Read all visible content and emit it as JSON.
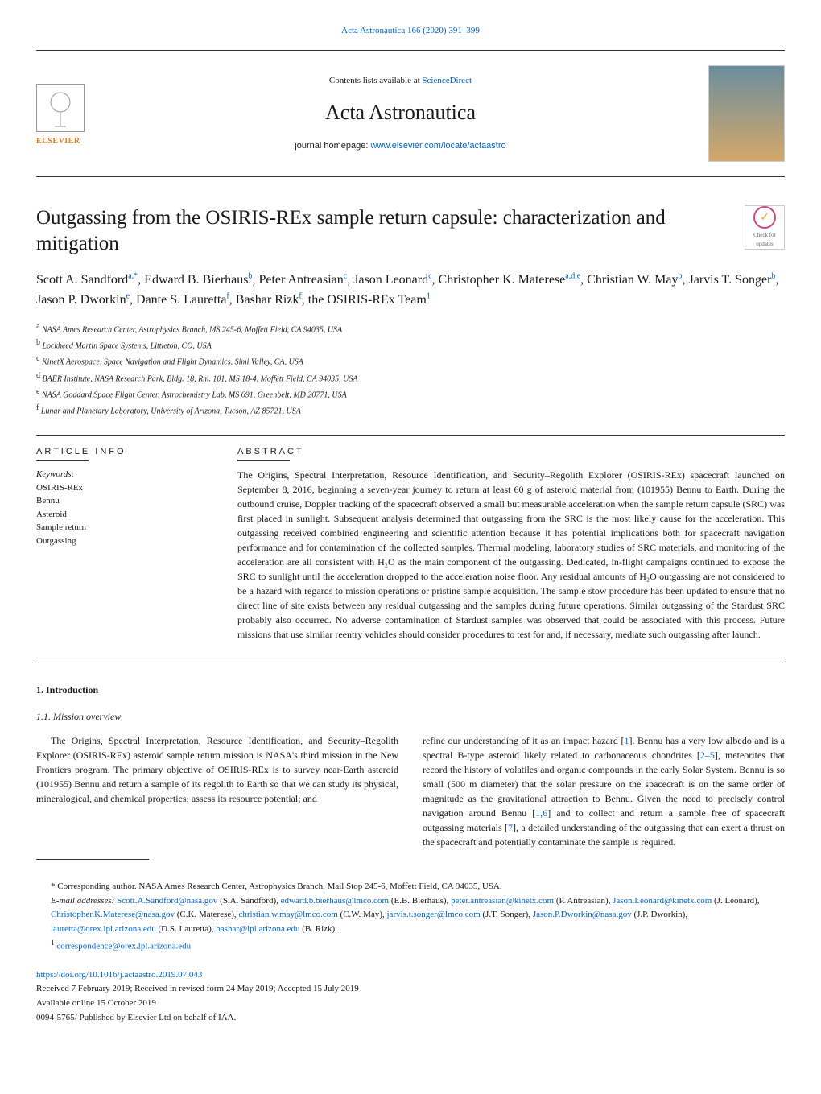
{
  "top": {
    "journal_ref": "Acta Astronautica 166 (2020) 391–399"
  },
  "header": {
    "contents_prefix": "Contents lists available at ",
    "contents_link": "ScienceDirect",
    "journal_name": "Acta Astronautica",
    "homepage_prefix": "journal homepage: ",
    "homepage_url": "www.elsevier.com/locate/actaastro",
    "publisher": "ELSEVIER"
  },
  "check": {
    "line1": "Check for",
    "line2": "updates"
  },
  "paper": {
    "title": "Outgassing from the OSIRIS-REx sample return capsule: characterization and mitigation",
    "authors_html": "Scott A. Sandford<sup class='sup'>a,*</sup>, Edward B. Bierhaus<sup class='sup'>b</sup>, Peter Antreasian<sup class='sup'>c</sup>, Jason Leonard<sup class='sup'>c</sup>, Christopher K. Materese<sup class='sup'>a,d,e</sup>, Christian W. May<sup class='sup'>b</sup>, Jarvis T. Songer<sup class='sup'>b</sup>, Jason P. Dworkin<sup class='sup'>e</sup>, Dante S. Lauretta<sup class='sup'>f</sup>, Bashar Rizk<sup class='sup'>f</sup>, the OSIRIS-REx Team<sup class='sup'>1</sup>"
  },
  "affiliations": [
    {
      "mark": "a",
      "text": "NASA Ames Research Center, Astrophysics Branch, MS 245-6, Moffett Field, CA 94035, USA"
    },
    {
      "mark": "b",
      "text": "Lockheed Martin Space Systems, Littleton, CO, USA"
    },
    {
      "mark": "c",
      "text": "KinetX Aerospace, Space Navigation and Flight Dynamics, Simi Valley, CA, USA"
    },
    {
      "mark": "d",
      "text": "BAER Institute, NASA Research Park, Bldg. 18, Rm. 101, MS 18-4, Moffett Field, CA 94035, USA"
    },
    {
      "mark": "e",
      "text": "NASA Goddard Space Flight Center, Astrochemistry Lab, MS 691, Greenbelt, MD 20771, USA"
    },
    {
      "mark": "f",
      "text": "Lunar and Planetary Laboratory, University of Arizona, Tucson, AZ 85721, USA"
    }
  ],
  "info": {
    "heading": "ARTICLE INFO",
    "keywords_label": "Keywords:",
    "keywords": [
      "OSIRIS-REx",
      "Bennu",
      "Asteroid",
      "Sample return",
      "Outgassing"
    ]
  },
  "abstract": {
    "heading": "ABSTRACT",
    "text": "The Origins, Spectral Interpretation, Resource Identification, and Security–Regolith Explorer (OSIRIS-REx) spacecraft launched on September 8, 2016, beginning a seven-year journey to return at least 60 g of asteroid material from (101955) Bennu to Earth. During the outbound cruise, Doppler tracking of the spacecraft observed a small but measurable acceleration when the sample return capsule (SRC) was first placed in sunlight. Subsequent analysis determined that outgassing from the SRC is the most likely cause for the acceleration. This outgassing received combined engineering and scientific attention because it has potential implications both for spacecraft navigation performance and for contamination of the collected samples. Thermal modeling, laboratory studies of SRC materials, and monitoring of the acceleration are all consistent with H₂O as the main component of the outgassing. Dedicated, in-flight campaigns continued to expose the SRC to sunlight until the acceleration dropped to the acceleration noise floor. Any residual amounts of H₂O outgassing are not considered to be a hazard with regards to mission operations or pristine sample acquisition. The sample stow procedure has been updated to ensure that no direct line of site exists between any residual outgassing and the samples during future operations. Similar outgassing of the Stardust SRC probably also occurred. No adverse contamination of Stardust samples was observed that could be associated with this process. Future missions that use similar reentry vehicles should consider procedures to test for and, if necessary, mediate such outgassing after launch."
  },
  "intro": {
    "section_number": "1. Introduction",
    "subsection": "1.1. Mission overview",
    "col1": "The Origins, Spectral Interpretation, Resource Identification, and Security–Regolith Explorer (OSIRIS-REx) asteroid sample return mission is NASA's third mission in the New Frontiers program. The primary objective of OSIRIS-REx is to survey near-Earth asteroid (101955) Bennu and return a sample of its regolith to Earth so that we can study its physical, mineralogical, and chemical properties; assess its resource potential; and",
    "col2": "refine our understanding of it as an impact hazard [1]. Bennu has a very low albedo and is a spectral B-type asteroid likely related to carbonaceous chondrites [2–5], meteorites that record the history of volatiles and organic compounds in the early Solar System. Bennu is so small (500 m diameter) that the solar pressure on the spacecraft is on the same order of magnitude as the gravitational attraction to Bennu. Given the need to precisely control navigation around Bennu [1,6] and to collect and return a sample free of spacecraft outgassing materials [7], a detailed understanding of the outgassing that can exert a thrust on the spacecraft and potentially contaminate the sample is required."
  },
  "footnotes": {
    "corresponding": "* Corresponding author. NASA Ames Research Center, Astrophysics Branch, Mail Stop 245-6, Moffett Field, CA 94035, USA.",
    "emails_label": "E-mail addresses: ",
    "emails": [
      {
        "addr": "Scott.A.Sandford@nasa.gov",
        "name": " (S.A. Sandford), "
      },
      {
        "addr": "edward.b.bierhaus@lmco.com",
        "name": " (E.B. Bierhaus), "
      },
      {
        "addr": "peter.antreasian@kinetx.com",
        "name": " (P. Antreasian), "
      },
      {
        "addr": "Jason.Leonard@kinetx.com",
        "name": " (J. Leonard), "
      },
      {
        "addr": "Christopher.K.Materese@nasa.gov",
        "name": " (C.K. Materese), "
      },
      {
        "addr": "christian.w.may@lmco.com",
        "name": " (C.W. May), "
      },
      {
        "addr": "jarvis.t.songer@lmco.com",
        "name": " (J.T. Songer), "
      },
      {
        "addr": "Jason.P.Dworkin@nasa.gov",
        "name": " (J.P. Dworkin), "
      },
      {
        "addr": "lauretta@orex.lpl.arizona.edu",
        "name": " (D.S. Lauretta), "
      },
      {
        "addr": "bashar@lpl.arizona.edu",
        "name": " (B. Rizk)."
      }
    ],
    "team_contact_mark": "1",
    "team_contact": "correspondence@orex.lpl.arizona.edu"
  },
  "doi": {
    "url": "https://doi.org/10.1016/j.actaastro.2019.07.043",
    "received": "Received 7 February 2019; Received in revised form 24 May 2019; Accepted 15 July 2019",
    "online": "Available online 15 October 2019",
    "issn": "0094-5765/ Published by Elsevier Ltd on behalf of IAA."
  },
  "refs": {
    "r1": "1",
    "r16": "1,6",
    "r25": "2–5",
    "r7": "7"
  }
}
